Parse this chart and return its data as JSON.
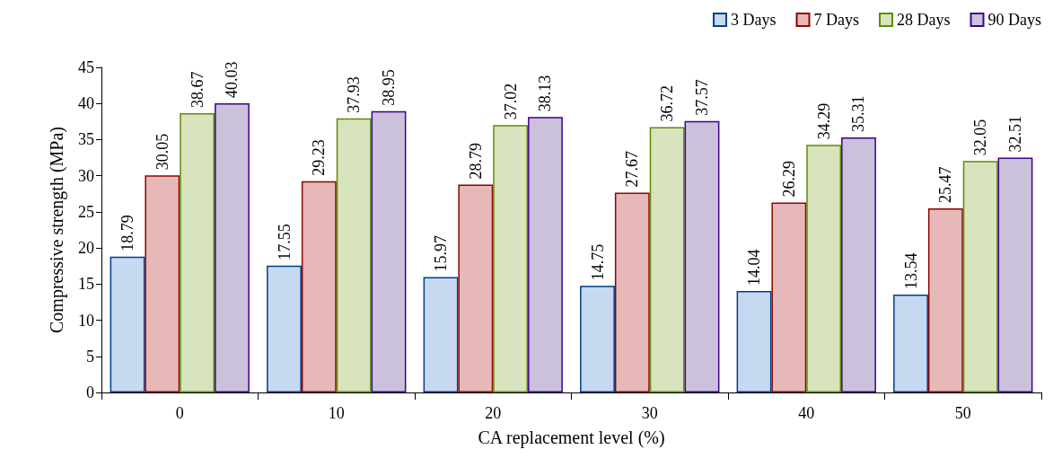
{
  "chart_data": {
    "type": "bar",
    "xlabel": "CA replacement level (%)",
    "ylabel": "Compressive strength (MPa)",
    "categories": [
      "0",
      "10",
      "20",
      "30",
      "40",
      "50"
    ],
    "series": [
      {
        "name": "3 Days",
        "color": "#c6d9f1",
        "values": [
          18.79,
          17.55,
          15.97,
          14.75,
          14.04,
          13.54
        ]
      },
      {
        "name": "7 Days",
        "color": "#e6b9b8",
        "values": [
          30.05,
          29.23,
          28.79,
          27.67,
          26.29,
          25.47
        ]
      },
      {
        "name": "28 Days",
        "color": "#d7e4bd",
        "values": [
          38.67,
          37.93,
          37.02,
          36.72,
          34.29,
          32.05
        ]
      },
      {
        "name": "90 Days",
        "color": "#ccc1da",
        "values": [
          40.03,
          38.95,
          38.13,
          37.57,
          35.31,
          32.51
        ]
      }
    ],
    "ylim": [
      0,
      45
    ],
    "yticks": [
      0,
      5,
      10,
      15,
      20,
      25,
      30,
      35,
      40,
      45
    ],
    "data_labels": true,
    "grid": false,
    "legend": "top right"
  }
}
